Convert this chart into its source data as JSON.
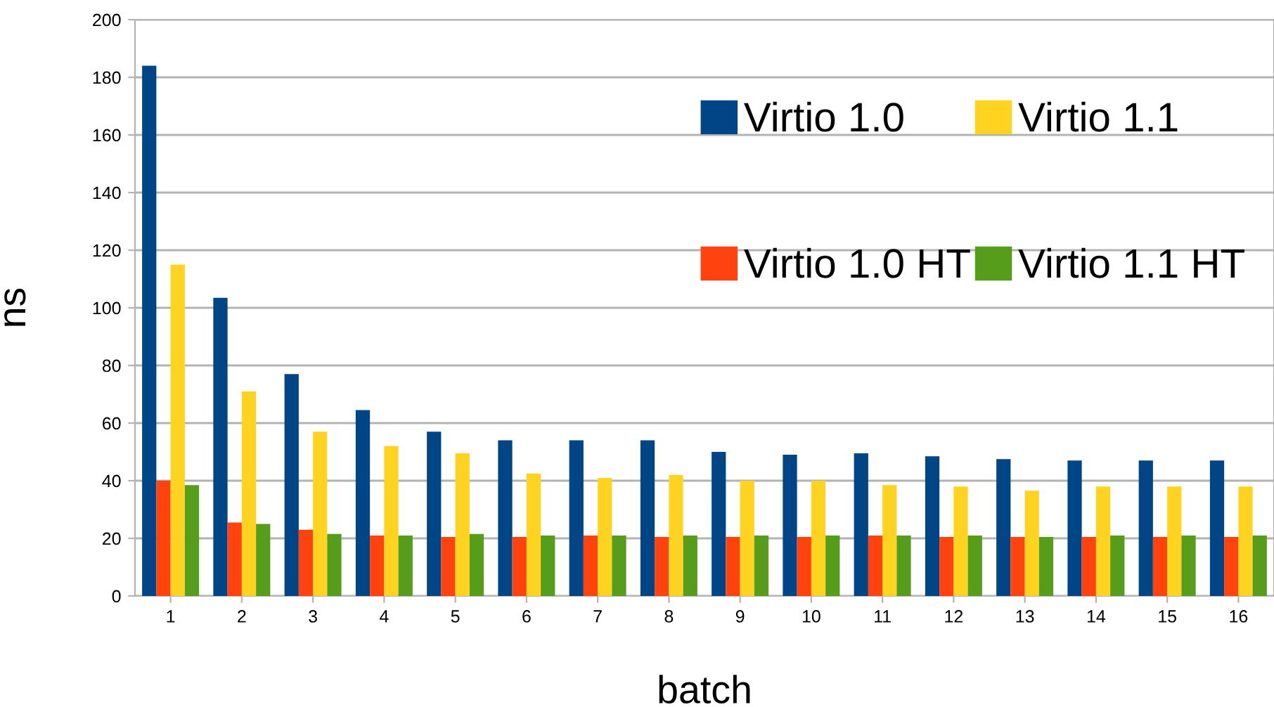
{
  "chart_data": {
    "type": "bar",
    "xlabel": "batch",
    "ylabel": "ns",
    "categories": [
      "1",
      "2",
      "3",
      "4",
      "5",
      "6",
      "7",
      "8",
      "9",
      "10",
      "11",
      "12",
      "13",
      "14",
      "15",
      "16"
    ],
    "series": [
      {
        "name": "Virtio 1.0",
        "color": "#004586",
        "values": [
          184,
          103.5,
          77,
          64.5,
          57,
          54,
          54,
          54,
          50,
          49,
          49.5,
          48.5,
          47.5,
          47,
          47,
          47
        ]
      },
      {
        "name": "Virtio 1.0 HT",
        "color": "#ff420e",
        "values": [
          40,
          25.5,
          23,
          21,
          20.5,
          20.5,
          21,
          20.5,
          20.5,
          20.5,
          21,
          20.5,
          20.5,
          20.5,
          20.5,
          20.5
        ]
      },
      {
        "name": "Virtio 1.1",
        "color": "#ffd320",
        "values": [
          115,
          71,
          57,
          52,
          49.5,
          42.5,
          41,
          42,
          40,
          40,
          38.5,
          38,
          36.5,
          38,
          38,
          38
        ]
      },
      {
        "name": "Virtio 1.1 HT",
        "color": "#579d1c",
        "values": [
          38.5,
          25,
          21.5,
          21,
          21.5,
          21,
          21,
          21,
          21,
          21,
          21,
          21,
          20.5,
          21,
          21,
          21
        ]
      }
    ],
    "ylim": [
      0,
      200
    ],
    "yticks": [
      0,
      20,
      40,
      60,
      80,
      100,
      120,
      140,
      160,
      180,
      200
    ],
    "grid": "y",
    "legend": "top right"
  }
}
